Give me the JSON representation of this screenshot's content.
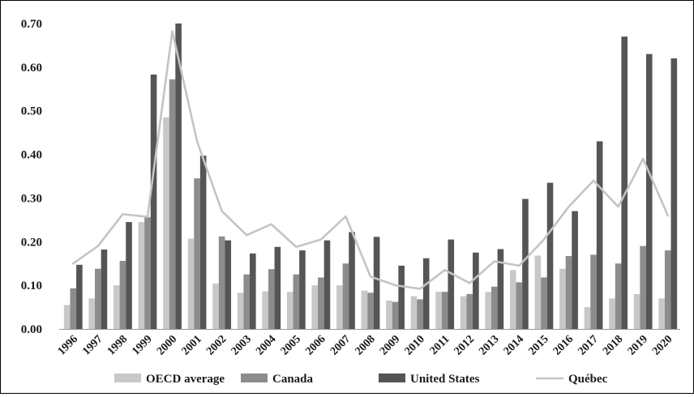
{
  "chart_data": {
    "type": "bar",
    "title": "",
    "xlabel": "",
    "ylabel": "",
    "ylim": [
      0,
      0.7
    ],
    "yticks": [
      "0.00",
      "0.10",
      "0.20",
      "0.30",
      "0.40",
      "0.50",
      "0.60",
      "0.70"
    ],
    "grid": false,
    "legend_position": "bottom",
    "categories": [
      "1996",
      "1997",
      "1998",
      "1999",
      "2000",
      "2001",
      "2002",
      "2003",
      "2004",
      "2005",
      "2006",
      "2007",
      "2008",
      "2009",
      "2010",
      "2011",
      "2012",
      "2013",
      "2014",
      "2015",
      "2016",
      "2017",
      "2018",
      "2019",
      "2020"
    ],
    "series": [
      {
        "name": "OECD average",
        "kind": "bar",
        "color": "#c8c8c8",
        "values": [
          0.055,
          0.07,
          0.1,
          0.245,
          0.485,
          0.207,
          0.104,
          0.083,
          0.086,
          0.085,
          0.1,
          0.1,
          0.088,
          0.065,
          0.075,
          0.085,
          0.075,
          0.085,
          0.135,
          0.168,
          0.138,
          0.05,
          0.07,
          0.08,
          0.07
        ]
      },
      {
        "name": "Canada",
        "kind": "bar",
        "color": "#8c8c8c",
        "values": [
          0.093,
          0.138,
          0.156,
          0.256,
          0.572,
          0.345,
          0.212,
          0.125,
          0.137,
          0.125,
          0.118,
          0.15,
          0.083,
          0.062,
          0.068,
          0.085,
          0.08,
          0.097,
          0.107,
          0.118,
          0.167,
          0.17,
          0.15,
          0.19,
          0.18
        ]
      },
      {
        "name": "United States",
        "kind": "bar",
        "color": "#555555",
        "values": [
          0.147,
          0.182,
          0.245,
          0.583,
          0.7,
          0.397,
          0.203,
          0.173,
          0.188,
          0.18,
          0.203,
          0.222,
          0.211,
          0.145,
          0.162,
          0.205,
          0.175,
          0.183,
          0.298,
          0.335,
          0.27,
          0.43,
          0.67,
          0.63,
          0.62
        ]
      },
      {
        "name": "Québec",
        "kind": "line",
        "color": "#c4c4c4",
        "values": [
          0.15,
          0.19,
          0.263,
          0.257,
          0.682,
          0.43,
          0.27,
          0.215,
          0.24,
          0.188,
          0.205,
          0.258,
          0.12,
          0.1,
          0.092,
          0.135,
          0.105,
          0.155,
          0.145,
          0.205,
          0.28,
          0.34,
          0.28,
          0.39,
          0.26
        ]
      }
    ]
  }
}
